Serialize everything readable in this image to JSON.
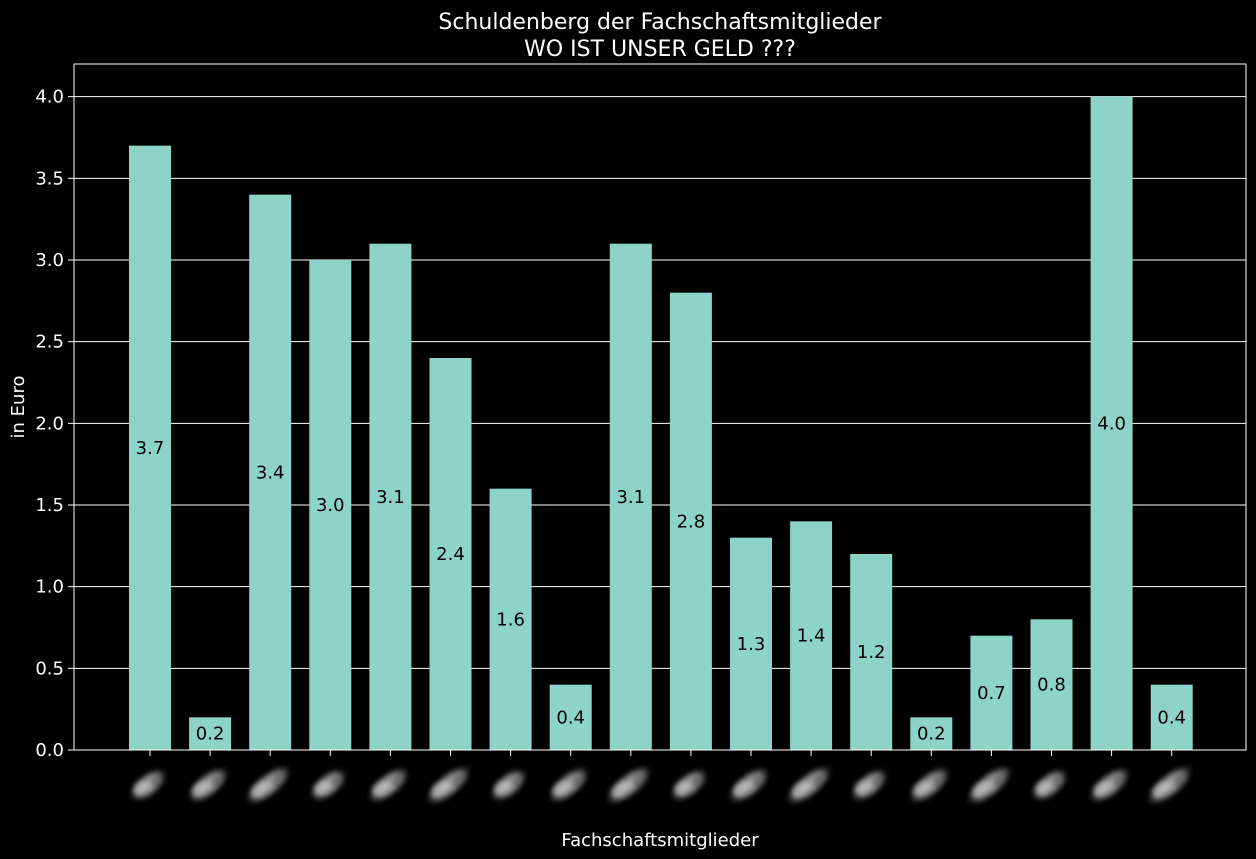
{
  "chart_data": {
    "type": "bar",
    "title": "Schuldenberg der Fachschaftsmitglieder",
    "subtitle": "WO IST UNSER GELD ???",
    "xlabel": "Fachschaftsmitglieder",
    "ylabel": "in Euro",
    "ylim": [
      0,
      4.2
    ],
    "yticks": [
      "0.0",
      "0.5",
      "1.0",
      "1.5",
      "2.0",
      "2.5",
      "3.0",
      "3.5",
      "4.0"
    ],
    "grid": true,
    "values": [
      3.7,
      0.2,
      3.4,
      3.0,
      3.1,
      2.4,
      1.6,
      0.4,
      3.1,
      2.8,
      1.3,
      1.4,
      1.2,
      0.2,
      0.7,
      0.8,
      4.0,
      0.4
    ],
    "data_labels": [
      "3.7",
      "0.2",
      "3.4",
      "3.0",
      "3.1",
      "2.4",
      "1.6",
      "0.4",
      "3.1",
      "2.8",
      "1.3",
      "1.4",
      "1.2",
      "0.2",
      "0.7",
      "0.8",
      "4.0",
      "0.4"
    ],
    "x_tick_images": "blurred-face-photos"
  },
  "colors": {
    "background": "#000000",
    "bar": "#8dd3c7",
    "grid": "#ffffff",
    "text": "#ffffff",
    "label": "#000000"
  }
}
